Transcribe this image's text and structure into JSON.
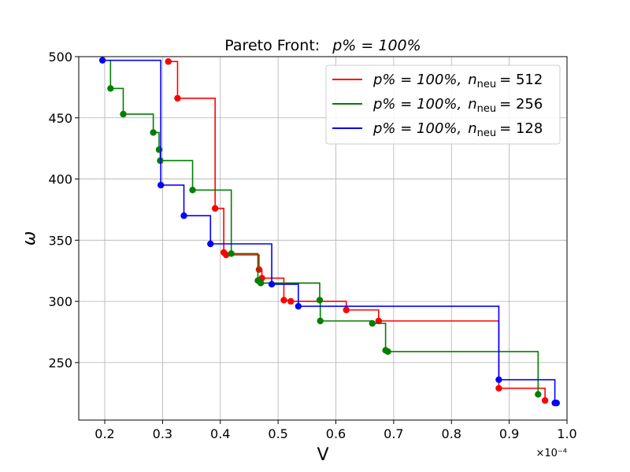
{
  "chart_data": {
    "type": "line",
    "title_prefix": "Pareto Front:",
    "title_math": "p% = 100%",
    "xlabel": "V",
    "ylabel": "ω",
    "x_scale_label": "×10⁻⁴",
    "xlim": [
      0.155,
      1.0
    ],
    "ylim": [
      203,
      500
    ],
    "xticks": [
      "0.2",
      "0.3",
      "0.4",
      "0.5",
      "0.6",
      "0.7",
      "0.8",
      "0.9",
      "1.0"
    ],
    "xtick_values": [
      0.2,
      0.3,
      0.4,
      0.5,
      0.6,
      0.7,
      0.8,
      0.9,
      1.0
    ],
    "yticks": [
      "250",
      "300",
      "350",
      "400",
      "450",
      "500"
    ],
    "ytick_values": [
      250,
      300,
      350,
      400,
      450,
      500
    ],
    "grid": true,
    "legend_position": "top-right",
    "series": [
      {
        "name": "p%=100%, n_neu=512",
        "label_p": "p% = 100%,",
        "label_n": "n",
        "label_sub": "neu",
        "label_val": "= 512",
        "color": "#ff0000",
        "points": [
          [
            0.31,
            496
          ],
          [
            0.326,
            466
          ],
          [
            0.391,
            376
          ],
          [
            0.406,
            340
          ],
          [
            0.41,
            338
          ],
          [
            0.467,
            326
          ],
          [
            0.472,
            319
          ],
          [
            0.51,
            301
          ],
          [
            0.522,
            300
          ],
          [
            0.618,
            293
          ],
          [
            0.674,
            284
          ],
          [
            0.882,
            229
          ],
          [
            0.962,
            219
          ]
        ]
      },
      {
        "name": "p%=100%, n_neu=256",
        "label_p": "p% = 100%,",
        "label_n": "n",
        "label_sub": "neu",
        "label_val": "= 256",
        "color": "#008000",
        "points": [
          [
            0.21,
            474
          ],
          [
            0.232,
            453
          ],
          [
            0.284,
            438
          ],
          [
            0.294,
            424
          ],
          [
            0.296,
            415
          ],
          [
            0.352,
            391
          ],
          [
            0.419,
            339
          ],
          [
            0.465,
            317
          ],
          [
            0.47,
            315
          ],
          [
            0.572,
            301
          ],
          [
            0.573,
            284
          ],
          [
            0.663,
            282
          ],
          [
            0.686,
            260
          ],
          [
            0.69,
            259
          ],
          [
            0.95,
            224
          ]
        ]
      },
      {
        "name": "p%=100%, n_neu=128",
        "label_p": "p% = 100%,",
        "label_n": "n",
        "label_sub": "neu",
        "label_val": "= 128",
        "color": "#0000ff",
        "points": [
          [
            0.196,
            497
          ],
          [
            0.297,
            395
          ],
          [
            0.337,
            370
          ],
          [
            0.383,
            347
          ],
          [
            0.489,
            314
          ],
          [
            0.535,
            296
          ],
          [
            0.882,
            236
          ],
          [
            0.979,
            217
          ],
          [
            0.982,
            217
          ]
        ]
      }
    ]
  }
}
